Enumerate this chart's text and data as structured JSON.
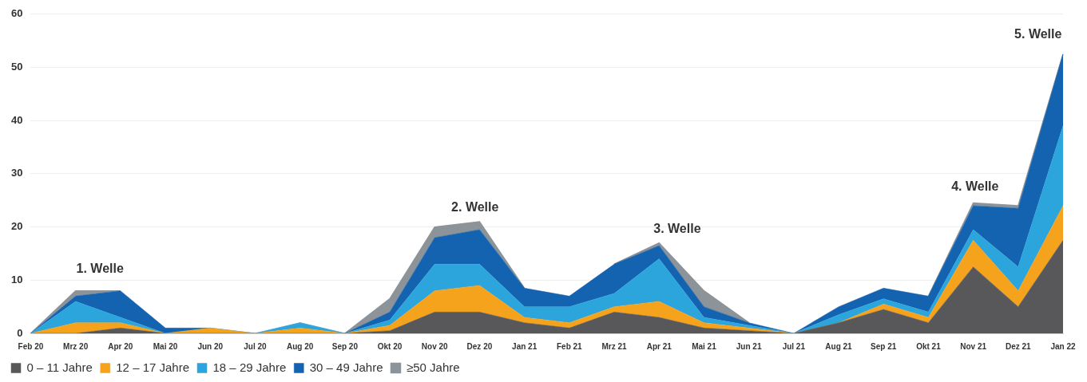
{
  "chart_data": {
    "type": "area",
    "stacked": true,
    "categories": [
      "Feb 20",
      "Mrz 20",
      "Apr 20",
      "Mai 20",
      "Jun 20",
      "Jul 20",
      "Aug 20",
      "Sep 20",
      "Okt 20",
      "Nov 20",
      "Dez 20",
      "Jan 21",
      "Feb 21",
      "Mrz 21",
      "Apr 21",
      "Mai 21",
      "Jun 21",
      "Jul 21",
      "Aug 21",
      "Sep 21",
      "Okt 21",
      "Nov 21",
      "Dez 21",
      "Jan 22"
    ],
    "series": [
      {
        "name": "0 – 11 Jahre",
        "color": "#58585a",
        "values": [
          0,
          0,
          1,
          0,
          0,
          0,
          0,
          0,
          0.5,
          4,
          4,
          2,
          1,
          4,
          3,
          1,
          0.5,
          0,
          2,
          4.5,
          2,
          12.5,
          5,
          17.5
        ]
      },
      {
        "name": "12 – 17 Jahre",
        "color": "#f5a21c",
        "values": [
          0,
          2,
          1,
          0,
          1,
          0,
          1,
          0,
          1,
          4,
          5,
          1,
          1,
          1,
          3,
          1,
          0.5,
          0,
          0,
          1,
          1,
          5,
          3,
          6.5
        ]
      },
      {
        "name": "18 – 29 Jahre",
        "color": "#2ca4dc",
        "values": [
          0,
          4,
          1,
          0,
          0,
          0,
          1,
          0,
          1,
          5,
          4,
          2,
          3,
          2.5,
          8,
          1,
          0.5,
          0,
          1.5,
          1,
          1,
          2,
          4.5,
          15
        ]
      },
      {
        "name": "30 – 49 Jahre",
        "color": "#1463b0",
        "values": [
          0,
          1,
          5,
          1,
          0,
          0,
          0,
          0,
          1.5,
          5,
          6.5,
          3.5,
          2,
          5.5,
          2.5,
          2,
          0.5,
          0,
          1.5,
          2,
          3,
          4.5,
          11,
          13.5
        ]
      },
      {
        "name": "≥50 Jahre",
        "color": "#8c9399",
        "values": [
          0,
          1,
          0,
          null,
          null,
          null,
          null,
          0,
          2.5,
          2,
          1.5,
          0,
          null,
          0,
          0.5,
          3,
          0,
          null,
          null,
          null,
          0,
          0.5,
          0.5,
          0
        ]
      }
    ],
    "ylim": [
      0,
      60
    ],
    "yticks": [
      0,
      10,
      20,
      30,
      40,
      50,
      60
    ],
    "grid": "y",
    "legend": "bottom left",
    "annotations": [
      "1. Welle",
      "2. Welle",
      "3. Welle",
      "4. Welle",
      "5. Welle"
    ]
  }
}
